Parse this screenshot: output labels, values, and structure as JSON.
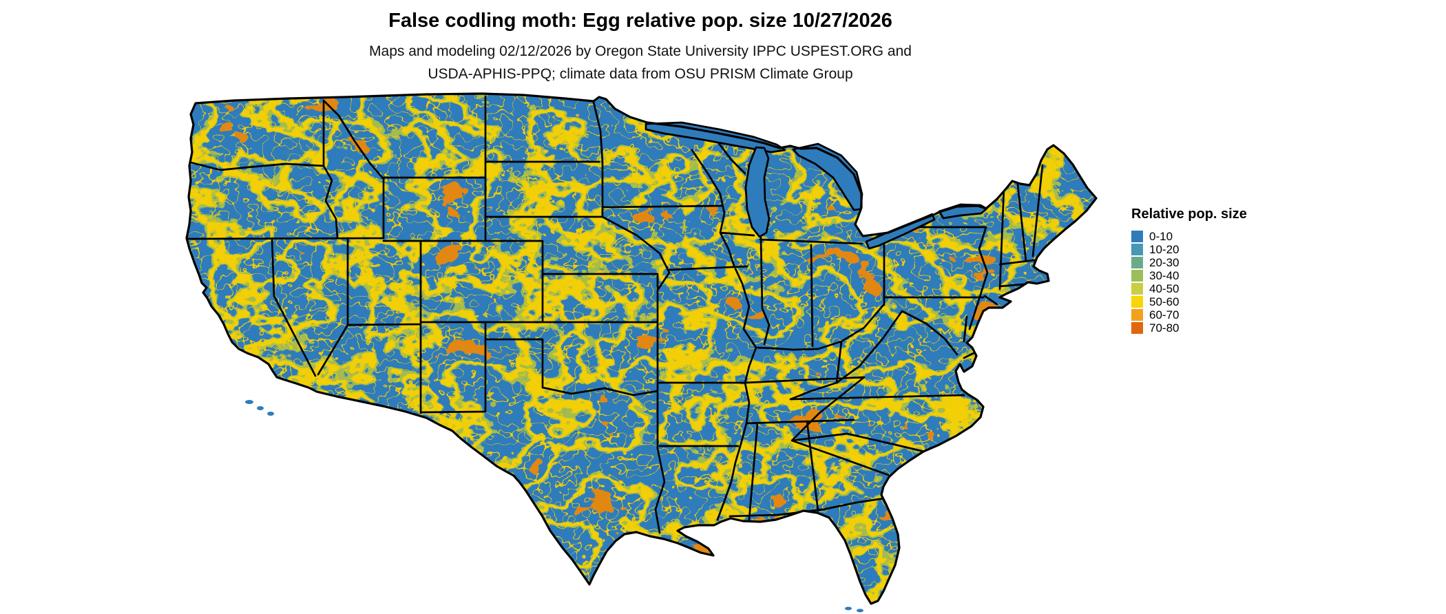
{
  "header": {
    "title": "False codling moth: Egg relative pop. size 10/27/2026",
    "subtitle_line1": "Maps and modeling 02/12/2026 by Oregon State University IPPC USPEST.ORG and",
    "subtitle_line2": "USDA-APHIS-PPQ; climate data from OSU PRISM Climate Group"
  },
  "legend": {
    "title": "Relative pop. size",
    "bins": [
      {
        "label": "0-10",
        "color": "#2E7CBC"
      },
      {
        "label": "10-20",
        "color": "#4897B4"
      },
      {
        "label": "20-30",
        "color": "#6BAA88"
      },
      {
        "label": "30-40",
        "color": "#9CBD59"
      },
      {
        "label": "40-50",
        "color": "#C9CE45"
      },
      {
        "label": "50-60",
        "color": "#F7D509"
      },
      {
        "label": "60-70",
        "color": "#F2A11B"
      },
      {
        "label": "70-80",
        "color": "#E0660F"
      }
    ]
  },
  "map": {
    "region": "Contiguous United States",
    "base_color": "#2E7CBC",
    "border_color": "#000000",
    "water_background": "#FFFFFF",
    "texture_colors": {
      "olive": "#A4BC4E",
      "yellow": "#F2CF06",
      "orange": "#E28812",
      "speckle": "#EFCB05"
    }
  }
}
